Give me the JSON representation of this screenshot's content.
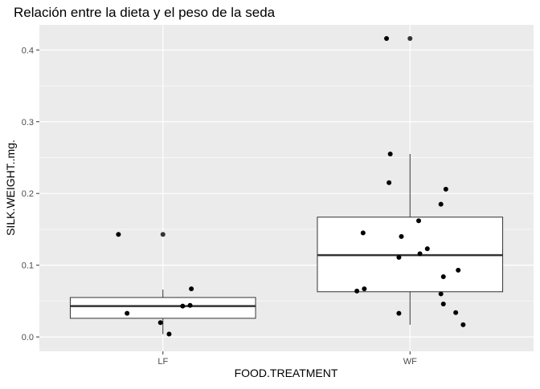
{
  "chart_data": {
    "type": "boxplot",
    "title": "Relación entre la dieta y el peso de la seda",
    "xlabel": "FOOD.TREATMENT",
    "ylabel": "SILK.WEIGHT..mg.",
    "categories": [
      "LF",
      "WF"
    ],
    "ylim": [
      -0.02,
      0.435
    ],
    "yticks": [
      0.0,
      0.1,
      0.2,
      0.3,
      0.4
    ],
    "ytick_labels": [
      "0.0",
      "0.1",
      "0.2",
      "0.3",
      "0.4"
    ],
    "grid": true,
    "boxes": [
      {
        "category": "LF",
        "min": 0.004,
        "q1": 0.026,
        "median": 0.043,
        "q3": 0.055,
        "max": 0.066,
        "outliers": [
          0.143
        ]
      },
      {
        "category": "WF",
        "min": 0.017,
        "q1": 0.063,
        "median": 0.114,
        "q3": 0.167,
        "max": 0.255,
        "outliers": [
          0.416
        ]
      }
    ],
    "points": [
      {
        "category": "LF",
        "jitter": -0.36,
        "value": 0.143
      },
      {
        "category": "LF",
        "jitter": -0.29,
        "value": 0.033
      },
      {
        "category": "LF",
        "jitter": -0.02,
        "value": 0.02
      },
      {
        "category": "LF",
        "jitter": 0.05,
        "value": 0.004
      },
      {
        "category": "LF",
        "jitter": 0.16,
        "value": 0.043
      },
      {
        "category": "LF",
        "jitter": 0.22,
        "value": 0.044
      },
      {
        "category": "LF",
        "jitter": 0.23,
        "value": 0.067
      },
      {
        "category": "WF",
        "jitter": -0.43,
        "value": 0.064
      },
      {
        "category": "WF",
        "jitter": -0.38,
        "value": 0.145
      },
      {
        "category": "WF",
        "jitter": -0.37,
        "value": 0.067
      },
      {
        "category": "WF",
        "jitter": -0.19,
        "value": 0.416
      },
      {
        "category": "WF",
        "jitter": -0.17,
        "value": 0.215
      },
      {
        "category": "WF",
        "jitter": -0.16,
        "value": 0.255
      },
      {
        "category": "WF",
        "jitter": -0.09,
        "value": 0.111
      },
      {
        "category": "WF",
        "jitter": -0.09,
        "value": 0.033
      },
      {
        "category": "WF",
        "jitter": -0.07,
        "value": 0.14
      },
      {
        "category": "WF",
        "jitter": 0.07,
        "value": 0.162
      },
      {
        "category": "WF",
        "jitter": 0.08,
        "value": 0.116
      },
      {
        "category": "WF",
        "jitter": 0.14,
        "value": 0.123
      },
      {
        "category": "WF",
        "jitter": 0.25,
        "value": 0.185
      },
      {
        "category": "WF",
        "jitter": 0.25,
        "value": 0.06
      },
      {
        "category": "WF",
        "jitter": 0.27,
        "value": 0.084
      },
      {
        "category": "WF",
        "jitter": 0.27,
        "value": 0.046
      },
      {
        "category": "WF",
        "jitter": 0.29,
        "value": 0.206
      },
      {
        "category": "WF",
        "jitter": 0.37,
        "value": 0.034
      },
      {
        "category": "WF",
        "jitter": 0.39,
        "value": 0.093
      },
      {
        "category": "WF",
        "jitter": 0.43,
        "value": 0.017
      }
    ]
  },
  "colors": {
    "panel_background": "#EBEBEB",
    "grid_major": "#FFFFFF",
    "box_fill": "#FFFFFF",
    "box_stroke": "#333333",
    "point": "#000000",
    "text": "#000000",
    "tick_text": "#4D4D4D"
  }
}
